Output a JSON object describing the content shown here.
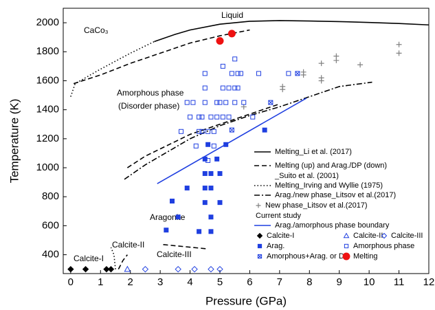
{
  "chart_data": {
    "type": "line",
    "x_label": "Pressure (GPa)",
    "y_label": "Temperature (K)",
    "xlim": [
      -0.25,
      12
    ],
    "ylim": [
      270,
      2100
    ],
    "xticks": [
      0,
      1,
      2,
      3,
      4,
      5,
      6,
      7,
      8,
      9,
      10,
      11,
      12
    ],
    "yticks": [
      400,
      600,
      800,
      1000,
      1200,
      1400,
      1600,
      1800,
      2000
    ],
    "annotations": [
      "Liquid",
      "CaCo₃",
      "Amorphous phase",
      "(Disorder phase)",
      "Aragonite",
      "Calcite-I",
      "Calcite-II",
      "Calcite-III"
    ],
    "legend_group_title": "Current study",
    "series": [
      {
        "name": "Melting_Li et al. (2017)",
        "color": "#000000",
        "dash": "solid",
        "x": [
          2.8,
          3.5,
          4,
          5,
          6,
          7,
          8,
          9,
          10,
          11,
          12
        ],
        "values": [
          1870,
          1920,
          1950,
          1990,
          2010,
          2015,
          2012,
          2008,
          2002,
          1995,
          1985
        ]
      },
      {
        "name": "Melting (up) and Arag./DP (down)\n_Suito et al. (2001)",
        "color": "#000000",
        "dash": "dashed",
        "x": [
          0.1,
          1,
          2,
          3,
          4,
          5,
          6,
          null,
          1.9,
          2.5,
          3,
          4,
          5,
          6,
          7
        ],
        "values": [
          1580,
          1640,
          1720,
          1790,
          1860,
          1910,
          1950,
          null,
          1000,
          1080,
          1130,
          1230,
          1300,
          1370,
          1440
        ]
      },
      {
        "name": "Melting_Irving and Wyllie (1975)",
        "color": "#000000",
        "dash": "dotted",
        "x": [
          0,
          0.15,
          1,
          2,
          2.8
        ],
        "values": [
          1490,
          1580,
          1680,
          1790,
          1870
        ]
      },
      {
        "name": "Arag./new phase_Litsov et al.(2017)",
        "color": "#000000",
        "dash": "dashdot",
        "x": [
          1.8,
          2.5,
          3,
          4,
          5,
          6,
          7,
          8,
          9,
          10.1
        ],
        "values": [
          920,
          1020,
          1080,
          1200,
          1290,
          1360,
          1420,
          1490,
          1560,
          1590
        ]
      },
      {
        "name": "New phase_Litsov et al.(2017)",
        "color": "#808080",
        "marker": "plus",
        "filled": false,
        "x": [
          5.8,
          7.1,
          7.1,
          7.8,
          7.8,
          8.4,
          8.4,
          8.4,
          8.9,
          8.9,
          9.7,
          11,
          11
        ],
        "values": [
          1420,
          1560,
          1540,
          1660,
          1640,
          1720,
          1620,
          1600,
          1770,
          1740,
          1710,
          1850,
          1790
        ]
      },
      {
        "name": "Arag./amorphous phase boundary",
        "color": "#1f3fe0",
        "dash": "solid",
        "x": [
          2.9,
          7.9
        ],
        "values": [
          890,
          1480
        ]
      },
      {
        "name": "Calcite-I",
        "color": "#000000",
        "marker": "diamond",
        "filled": true,
        "x": [
          0,
          0.5,
          1.2,
          1.35
        ],
        "values": [
          300,
          300,
          300,
          300
        ]
      },
      {
        "name": "Calcite-II",
        "color": "#1f3fe0",
        "marker": "triangle",
        "filled": false,
        "x": [
          1.9
        ],
        "values": [
          300
        ]
      },
      {
        "name": "Calcite-III",
        "color": "#1f3fe0",
        "marker": "diamond",
        "filled": false,
        "x": [
          2.5,
          3.6,
          4.15,
          4.7,
          5.0
        ],
        "values": [
          300,
          300,
          300,
          300,
          300
        ]
      },
      {
        "name": "Arag.",
        "color": "#1f3fe0",
        "marker": "square",
        "filled": true,
        "x": [
          3.2,
          3.4,
          3.6,
          3.9,
          4.3,
          4.5,
          4.5,
          4.5,
          4.5,
          4.7,
          4.7,
          4.7,
          4.7,
          5.0,
          5.0,
          4.6,
          4.9,
          5.2,
          6.5
        ],
        "values": [
          570,
          770,
          660,
          860,
          560,
          760,
          860,
          960,
          1060,
          560,
          660,
          860,
          960,
          760,
          960,
          1160,
          1060,
          1160,
          1260
        ]
      },
      {
        "name": "Amorphous phase",
        "color": "#1f3fe0",
        "marker": "square",
        "filled": false,
        "x": [
          3.7,
          3.9,
          4.1,
          4.2,
          4.3,
          4.4,
          4.4,
          4.5,
          4.5,
          4.5,
          4.6,
          4.6,
          4.7,
          4.8,
          4.8,
          4.9,
          4.9,
          5.0,
          5.1,
          5.1,
          5.1,
          5.2,
          5.3,
          5.3,
          5.4,
          5.5,
          5.5,
          5.5,
          5.6,
          5.6,
          5.7,
          5.8,
          6.3,
          7.3,
          6.1,
          4.0,
          4.3
        ],
        "values": [
          1250,
          1450,
          1450,
          1150,
          1250,
          1250,
          1350,
          1450,
          1550,
          1650,
          1050,
          1250,
          1350,
          1250,
          1150,
          1350,
          1450,
          1450,
          1350,
          1550,
          1700,
          1450,
          1350,
          1550,
          1650,
          1450,
          1550,
          1750,
          1650,
          1550,
          1650,
          1450,
          1650,
          1650,
          1350,
          1350,
          1350
        ]
      },
      {
        "name": "Amorphous+Arag. or DP",
        "color": "#1f3fe0",
        "marker": "squarex",
        "filled": false,
        "x": [
          5.4,
          6.7,
          7.6
        ],
        "values": [
          1260,
          1450,
          1650
        ]
      },
      {
        "name": "Melting",
        "color": "#ee1111",
        "marker": "circle",
        "filled": true,
        "x": [
          5.0,
          5.4
        ],
        "values": [
          1875,
          1925
        ]
      },
      {
        "color": "#000000",
        "dash": "dotted",
        "x": [
          1.5,
          1.45,
          1.35
        ],
        "values": [
          300,
          400,
          450
        ]
      },
      {
        "color": "#000000",
        "dash": "dashed",
        "x": [
          1.6,
          1.75,
          1.9
        ],
        "values": [
          300,
          360,
          400
        ]
      },
      {
        "color": "#000000",
        "dash": "dashed",
        "x": [
          3.1,
          4.6
        ],
        "values": [
          470,
          440
        ]
      }
    ]
  }
}
